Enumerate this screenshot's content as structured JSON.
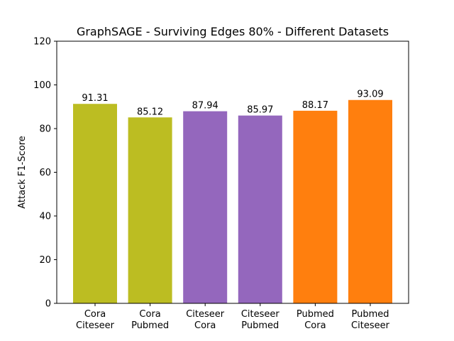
{
  "chart_data": {
    "type": "bar",
    "title": "GraphSAGE - Surviving Edges 80% - Different Datasets",
    "xlabel": "",
    "ylabel": "Attack F1-Score",
    "ylim": [
      0,
      120
    ],
    "yticks": [
      "0",
      "20",
      "40",
      "60",
      "80",
      "100",
      "120"
    ],
    "grid": false,
    "categories": [
      [
        "Cora",
        "Citeseer"
      ],
      [
        "Cora",
        "Pubmed"
      ],
      [
        "Citeseer",
        "Cora"
      ],
      [
        "Citeseer",
        "Pubmed"
      ],
      [
        "Pubmed",
        "Cora"
      ],
      [
        "Pubmed",
        "Citeseer"
      ]
    ],
    "values": [
      91.31,
      85.12,
      87.94,
      85.97,
      88.17,
      93.09
    ],
    "value_labels": [
      "91.31",
      "85.12",
      "87.94",
      "85.97",
      "88.17",
      "93.09"
    ],
    "colors": [
      "#bcbd22",
      "#bcbd22",
      "#9467bd",
      "#9467bd",
      "#ff7f0e",
      "#ff7f0e"
    ]
  }
}
